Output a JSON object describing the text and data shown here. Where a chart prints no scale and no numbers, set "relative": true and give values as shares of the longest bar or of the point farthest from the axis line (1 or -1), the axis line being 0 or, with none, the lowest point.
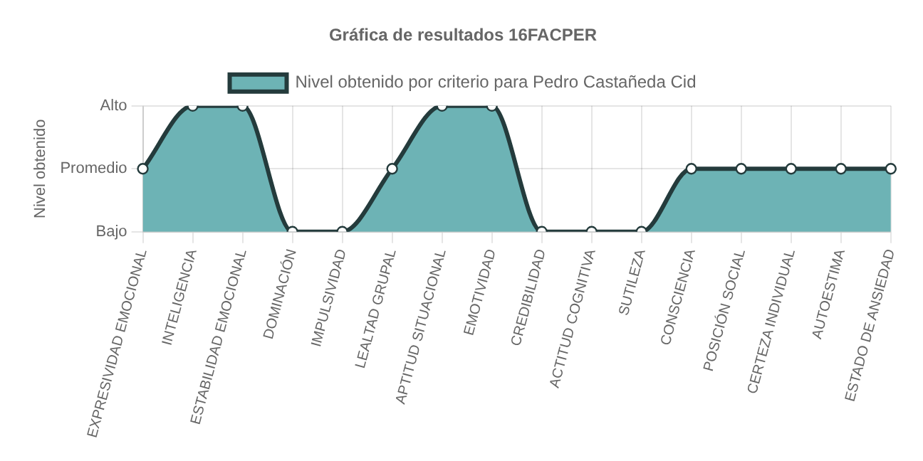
{
  "chart_data": {
    "type": "area",
    "title": "Gráfica de resultados 16FACPER",
    "ylabel": "Nivel obtenido",
    "categories": [
      "EXPRESIVIDAD EMOCIONAL",
      "INTELIGENCIA",
      "ESTABILIDAD EMOCIONAL",
      "DOMINACIÓN",
      "IMPULSIVIDAD",
      "LEALTAD GRUPAL",
      "APTITUD SITUACIONAL",
      "EMOTIVIDAD",
      "CREDIBILIDAD",
      "ACTITUD COGNITIVA",
      "SUTILEZA",
      "CONSCIENCIA",
      "POSICIÓN SOCIAL",
      "CERTEZA INDIVIDUAL",
      "AUTOESTIMA",
      "ESTADO DE ANSIEDAD"
    ],
    "y_categories": [
      "Alto",
      "Promedio",
      "Bajo"
    ],
    "relative": true,
    "series": [
      {
        "name": "Nivel obtenido por criterio para Pedro Castañeda Cid",
        "color": "#6db3b5",
        "values": [
          0.5,
          1,
          1,
          0,
          0,
          0.5,
          1,
          1,
          0,
          0,
          0,
          0.5,
          0.5,
          0.5,
          0.5,
          0.5
        ]
      }
    ],
    "grid": true,
    "legend": "top",
    "marker": "circle"
  }
}
